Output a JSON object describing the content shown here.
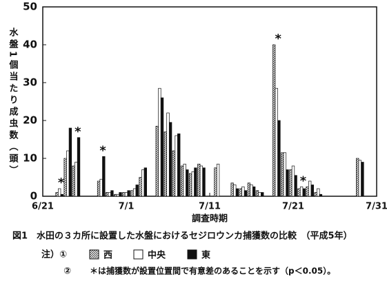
{
  "chart_data": {
    "type": "bar",
    "y_label": "水盤1個当たり成虫数（頭）",
    "x_label": "調査時期",
    "caption": "図1　水田の３カ所に設置した水盤におけるセジロウンカ捕獲数の比較　（平成5年）",
    "note_label": "注）①",
    "note2_label": "②",
    "note2": "＊は捕獲数が設置位置間で有意差のあることを示す（p＜0.05）。",
    "categories": [
      "6/21",
      null,
      null,
      null,
      null,
      null,
      null,
      null,
      null,
      null,
      "7/1",
      null,
      null,
      null,
      null,
      null,
      null,
      null,
      null,
      null,
      "7/11",
      null,
      null,
      null,
      null,
      null,
      null,
      null,
      null,
      null,
      "7/21",
      null,
      null,
      null,
      null,
      null,
      null,
      null,
      null,
      null,
      "7/31"
    ],
    "series": [
      {
        "name": "西",
        "color": "#888888",
        "pattern": "hatch",
        "values": [
          null,
          null,
          1,
          10,
          8,
          null,
          null,
          4,
          1,
          0.5,
          1,
          1.5,
          5,
          null,
          18.5,
          17,
          12,
          8,
          6,
          8.5,
          null,
          7.5,
          null,
          3.5,
          2,
          3.5,
          1.5,
          null,
          40,
          11.5,
          7,
          2,
          2.5,
          1,
          null,
          null,
          null,
          null,
          10,
          null,
          null
        ]
      },
      {
        "name": "中央",
        "color": "#ffffff",
        "values": [
          null,
          null,
          2,
          12,
          9,
          null,
          null,
          4.5,
          1,
          0.5,
          1,
          2,
          7,
          null,
          28.5,
          22,
          16,
          8.5,
          6.5,
          8,
          null,
          8.5,
          null,
          3,
          2.5,
          3,
          1,
          null,
          28.5,
          11.5,
          8,
          2.5,
          4,
          2,
          null,
          null,
          null,
          null,
          9.5,
          null,
          null
        ]
      },
      {
        "name": "東",
        "color": "#111111",
        "values": [
          null,
          null,
          0.5,
          18,
          15.5,
          null,
          null,
          10.5,
          1.5,
          1,
          1.5,
          3,
          7.5,
          null,
          26,
          19.5,
          16.5,
          7,
          7.5,
          7.5,
          null,
          null,
          null,
          2,
          1.5,
          2.5,
          1,
          null,
          20,
          7,
          5.5,
          2,
          3,
          0.5,
          null,
          null,
          null,
          null,
          9,
          null,
          null
        ]
      }
    ],
    "significance_label": "*",
    "significant": [
      false,
      false,
      true,
      false,
      true,
      false,
      false,
      true,
      false,
      false,
      false,
      false,
      false,
      false,
      false,
      false,
      false,
      false,
      false,
      false,
      false,
      false,
      false,
      false,
      false,
      false,
      false,
      false,
      true,
      false,
      false,
      true,
      false,
      false,
      false,
      false,
      false,
      false,
      false,
      false,
      false
    ],
    "ylim": [
      0,
      50
    ],
    "yticks": [
      0,
      10,
      20,
      30,
      40,
      50
    ]
  }
}
